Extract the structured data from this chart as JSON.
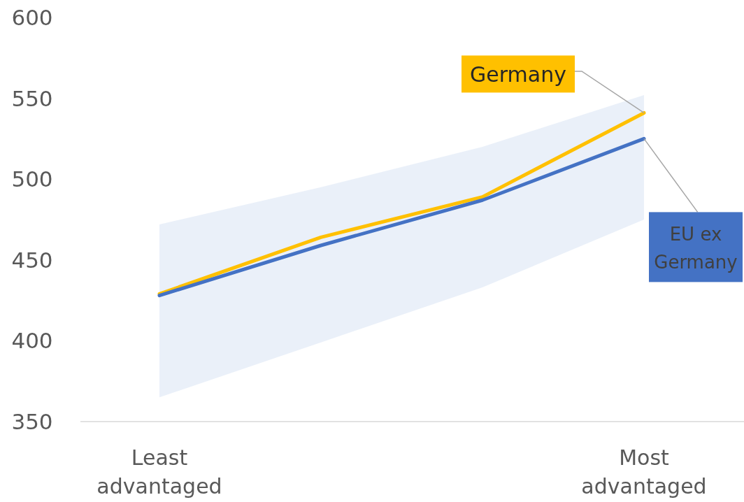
{
  "chart_data": {
    "type": "line",
    "categories": [
      "Least advantaged",
      null,
      null,
      "Most advantaged"
    ],
    "series": [
      {
        "name": "Germany",
        "color": "#ffc000",
        "values": [
          429,
          464,
          489,
          541
        ]
      },
      {
        "name": "EU ex Germany",
        "color": "#4472c4",
        "values": [
          428,
          459,
          487,
          525
        ],
        "lower": [
          365,
          399,
          433,
          475
        ],
        "upper": [
          472,
          495,
          520,
          552
        ]
      }
    ],
    "ylim": [
      350,
      600
    ],
    "yticks": [
      350,
      400,
      450,
      500,
      550,
      600
    ],
    "grid": false,
    "marker": "none",
    "line_style": "solid"
  }
}
